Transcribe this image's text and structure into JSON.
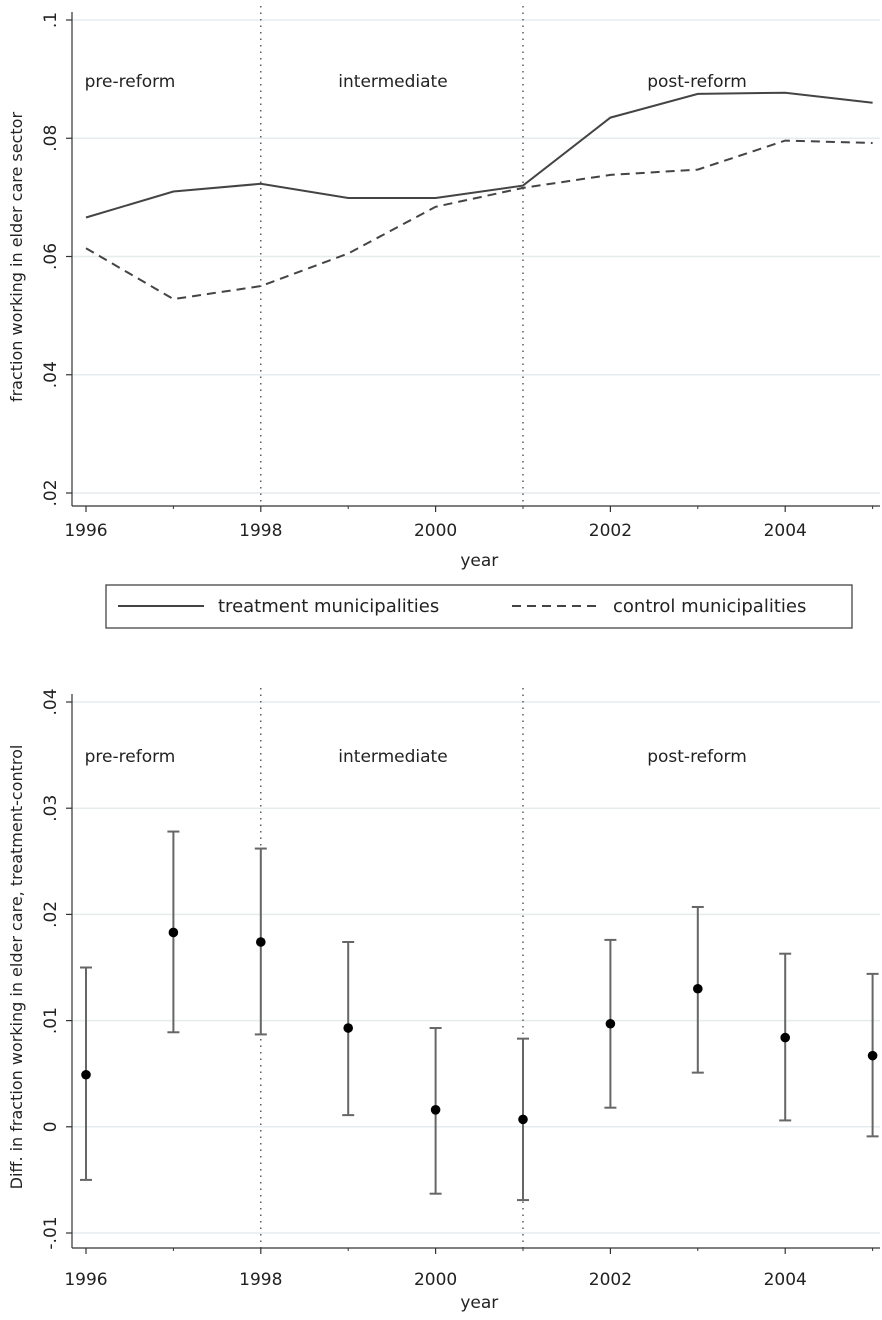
{
  "chart_data": [
    {
      "type": "line",
      "xlabel": "year",
      "ylabel": "fraction working in elder care sector",
      "xlim": [
        1996,
        2005
      ],
      "ylim": [
        0.02,
        0.1
      ],
      "x_ticks": [
        "1996",
        "1998",
        "2000",
        "2002",
        "2004"
      ],
      "y_ticks": [
        ".02",
        ".04",
        ".06",
        ".08",
        ".1"
      ],
      "grid": true,
      "period_boundaries": [
        1998,
        2001
      ],
      "period_labels": [
        "pre-reform",
        "intermediate",
        "post-reform"
      ],
      "x": [
        1996,
        1997,
        1998,
        1999,
        2000,
        2001,
        2002,
        2003,
        2004,
        2005
      ],
      "series": [
        {
          "name": "treatment municipalities",
          "style": "solid",
          "values": [
            0.0666,
            0.071,
            0.0723,
            0.0699,
            0.0699,
            0.072,
            0.0835,
            0.0875,
            0.0877,
            0.086
          ]
        },
        {
          "name": "control municipalities",
          "style": "dashed",
          "values": [
            0.0614,
            0.0528,
            0.055,
            0.0605,
            0.0684,
            0.0716,
            0.0738,
            0.0747,
            0.0796,
            0.0792
          ]
        }
      ],
      "legend_position": "bottom"
    },
    {
      "type": "scatter",
      "xlabel": "year",
      "ylabel": "Diff. in fraction working in elder care, treatment-control",
      "xlim": [
        1996,
        2005
      ],
      "ylim": [
        -0.01,
        0.04
      ],
      "x_ticks": [
        "1996",
        "1998",
        "2000",
        "2002",
        "2004"
      ],
      "y_ticks": [
        "-.01",
        "0",
        ".01",
        ".02",
        ".03",
        ".04"
      ],
      "grid": true,
      "period_boundaries": [
        1998,
        2001
      ],
      "period_labels": [
        "pre-reform",
        "intermediate",
        "post-reform"
      ],
      "x": [
        1996,
        1997,
        1998,
        1999,
        2000,
        2001,
        2002,
        2003,
        2004,
        2005
      ],
      "values": [
        0.0049,
        0.0183,
        0.0174,
        0.0093,
        0.0016,
        0.0007,
        0.0097,
        0.013,
        0.0084,
        0.0067
      ],
      "ci_low": [
        -0.005,
        0.0089,
        0.0087,
        0.0011,
        -0.0063,
        -0.0069,
        0.0018,
        0.0051,
        0.0006,
        -0.0009
      ],
      "ci_high": [
        0.015,
        0.0278,
        0.0262,
        0.0174,
        0.0093,
        0.0083,
        0.0176,
        0.0207,
        0.0163,
        0.0144
      ]
    }
  ]
}
